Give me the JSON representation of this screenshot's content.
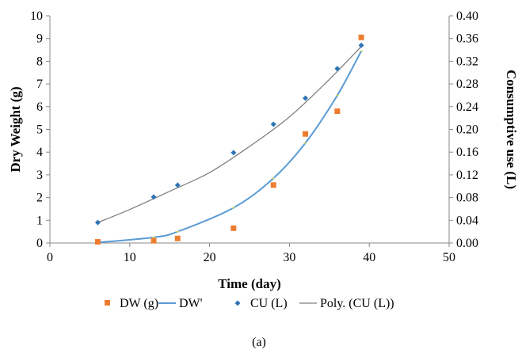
{
  "chart_data": {
    "type": "scatter",
    "xlabel": "Time (day)",
    "ylabel_left": "Dry Weight (g)",
    "ylabel_right": "Consumptive use (L)",
    "xlim": [
      0,
      50
    ],
    "ylim_left": [
      0,
      10
    ],
    "ylim_right": [
      0,
      0.4
    ],
    "x_ticks": [
      "0",
      "10",
      "20",
      "30",
      "40",
      "50"
    ],
    "y_left_ticks": [
      "0",
      "1",
      "2",
      "3",
      "4",
      "5",
      "6",
      "7",
      "8",
      "9",
      "10"
    ],
    "y_right_ticks": [
      "0.00",
      "0.04",
      "0.08",
      "0.12",
      "0.16",
      "0.20",
      "0.24",
      "0.28",
      "0.32",
      "0.36",
      "0.40"
    ],
    "grid": false,
    "legend_position": "bottom",
    "caption": "(a)",
    "series": [
      {
        "name": "DW (g)",
        "kind": "markers",
        "marker": "square",
        "axis": "left",
        "color": "#ED7D31",
        "x": [
          6,
          13,
          16,
          23,
          28,
          32,
          36,
          39
        ],
        "y": [
          0.05,
          0.1,
          0.2,
          0.65,
          2.55,
          4.8,
          5.8,
          9.05
        ]
      },
      {
        "name": "DW'",
        "kind": "line",
        "axis": "left",
        "color": "#5B9BD5",
        "x": [
          6,
          13,
          16,
          23,
          28,
          32,
          36,
          39
        ],
        "y": [
          0.02,
          0.25,
          0.5,
          1.55,
          2.85,
          4.4,
          6.5,
          8.45
        ]
      },
      {
        "name": "CU (L)",
        "kind": "markers",
        "marker": "diamond",
        "axis": "right",
        "color": "#2E75B6",
        "x": [
          6,
          13,
          16,
          23,
          28,
          32,
          36,
          39
        ],
        "y": [
          0.036,
          0.081,
          0.102,
          0.159,
          0.209,
          0.255,
          0.307,
          0.348
        ]
      },
      {
        "name": "Poly. (CU (L))",
        "kind": "trendline",
        "axis": "right",
        "color": "#808080",
        "x": [
          6,
          10,
          15,
          20,
          25,
          30,
          35,
          39
        ],
        "y": [
          0.036,
          0.059,
          0.091,
          0.124,
          0.17,
          0.222,
          0.288,
          0.346
        ]
      }
    ]
  }
}
